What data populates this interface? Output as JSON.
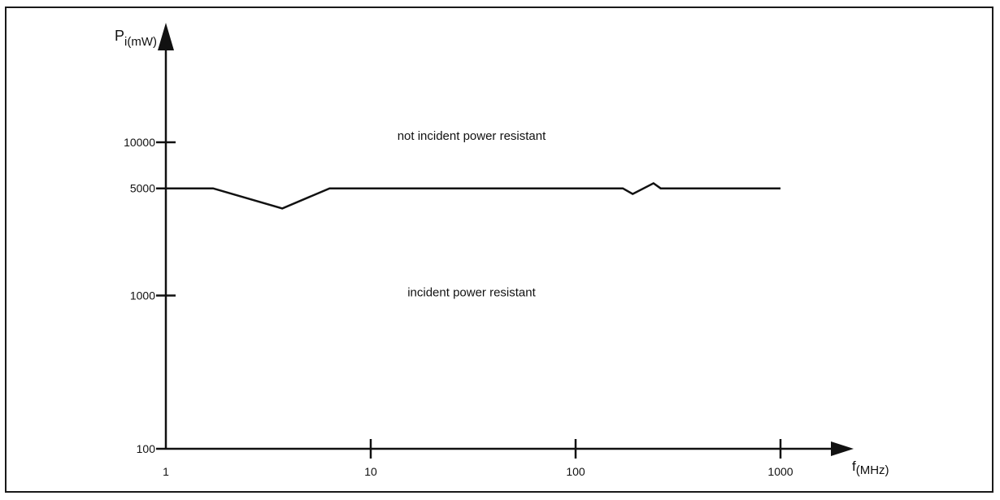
{
  "chart_data": {
    "type": "line",
    "xscale": "log",
    "yscale": "log",
    "x_axis_label": {
      "main": "f",
      "sub": "(MHz)"
    },
    "y_axis_label": {
      "main": "P",
      "sub": "i(mW)"
    },
    "xlim": [
      1,
      1000
    ],
    "ylim": [
      100,
      10000
    ],
    "x_ticks": [
      {
        "value": 1,
        "label": "1"
      },
      {
        "value": 10,
        "label": "10"
      },
      {
        "value": 100,
        "label": "100"
      },
      {
        "value": 1000,
        "label": "1000"
      }
    ],
    "y_ticks": [
      {
        "value": 100,
        "label": "100"
      },
      {
        "value": 1000,
        "label": "1000"
      },
      {
        "value": 5000,
        "label": "5000"
      },
      {
        "value": 10000,
        "label": "10000"
      }
    ],
    "series": [
      {
        "points": [
          {
            "x": 1,
            "y": 5000
          },
          {
            "x": 1.7,
            "y": 5000
          },
          {
            "x": 3.7,
            "y": 3700
          },
          {
            "x": 6.3,
            "y": 5000
          },
          {
            "x": 170,
            "y": 5000
          },
          {
            "x": 190,
            "y": 4600
          },
          {
            "x": 240,
            "y": 5400
          },
          {
            "x": 260,
            "y": 5000
          },
          {
            "x": 1000,
            "y": 5000
          }
        ]
      }
    ],
    "annotations": [
      {
        "text": "not incident power resistant",
        "x": 10,
        "y": 10000
      },
      {
        "text": "incident power resistant",
        "x": 10,
        "y": 1000
      }
    ],
    "grid": false,
    "colors": {
      "line": "#111111",
      "axis": "#111111"
    }
  }
}
